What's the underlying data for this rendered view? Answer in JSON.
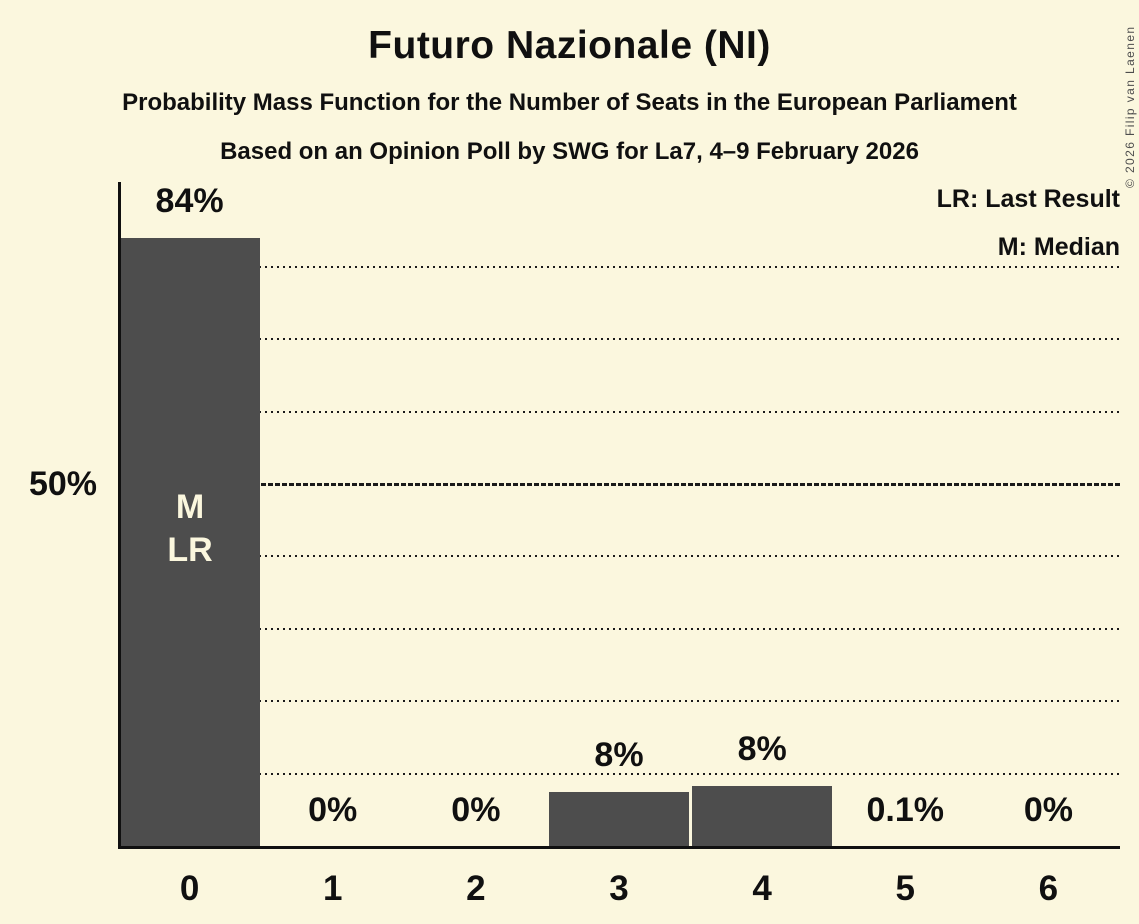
{
  "title": "Futuro Nazionale (NI)",
  "subtitle": "Probability Mass Function for the Number of Seats in the European Parliament",
  "subsubtitle": "Based on an Opinion Poll by SWG for La7, 4–9 February 2026",
  "copyright": "© 2026 Filip van Laenen",
  "legend": {
    "last_result": "LR: Last Result",
    "median": "M: Median"
  },
  "y_axis_label_50": "50%",
  "bar0_annotation": {
    "line1": "M",
    "line2": "LR"
  },
  "colors": {
    "background": "#FBF7DE",
    "bar": "#4D4D4D",
    "text": "#101010",
    "grid": "#1A1A1A",
    "bar_annotation_text": "#FBF7DE"
  },
  "chart_data": {
    "type": "bar",
    "title": "Futuro Nazionale (NI)",
    "categories": [
      "0",
      "1",
      "2",
      "3",
      "4",
      "5",
      "6"
    ],
    "values": [
      84,
      0,
      0,
      7.5,
      8.3,
      0.1,
      0
    ],
    "bar_labels": [
      "84%",
      "0%",
      "0%",
      "8%",
      "8%",
      "0.1%",
      "0%"
    ],
    "xlabel": "",
    "ylabel": "",
    "ylim": [
      0,
      92
    ],
    "y_tick_labels": [
      "50%"
    ],
    "y_reference_line_solid": 50,
    "gridlines_dotted": [
      10,
      20,
      30,
      40,
      60,
      70,
      80
    ],
    "grid": "horizontal dotted",
    "legend_position": "top-right",
    "legend_entries": [
      "LR: Last Result",
      "M: Median"
    ],
    "annotations": {
      "median_at_seats": "0",
      "last_result_at_seats": "0",
      "median_marker": "M",
      "last_result_marker": "LR"
    }
  }
}
